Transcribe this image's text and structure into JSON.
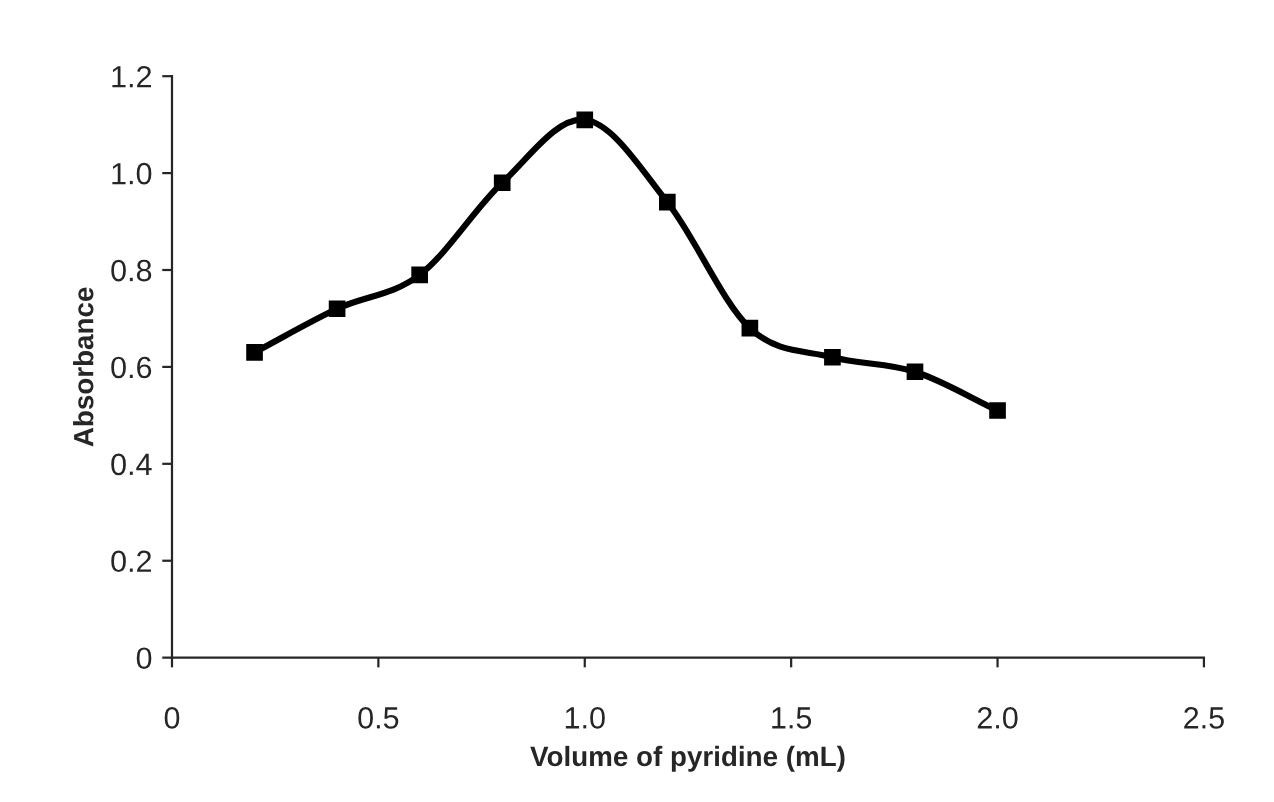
{
  "chart_data": {
    "type": "line",
    "xlabel": "Volume of pyridine (mL)",
    "ylabel": "Absorbance",
    "x": [
      0.2,
      0.4,
      0.6,
      0.8,
      1.0,
      1.2,
      1.4,
      1.6,
      1.8,
      2.0
    ],
    "series": [
      {
        "color": "#000000",
        "values": [
          0.63,
          0.72,
          0.79,
          0.98,
          1.11,
          0.94,
          0.68,
          0.62,
          0.59,
          0.51
        ]
      }
    ],
    "xlim": [
      0,
      2.5
    ],
    "xticks": [
      0,
      {
        "value": 0.5,
        "label": "0.5"
      },
      {
        "value": 1.0,
        "label": "1.0"
      },
      {
        "value": 1.5,
        "label": "1.5"
      },
      {
        "value": 2.0,
        "label": "2.0"
      },
      {
        "value": 2.5,
        "label": "2.5"
      }
    ],
    "ylim": [
      0,
      1.2
    ],
    "yticks": [
      0,
      {
        "value": 0.2,
        "label": "0.2"
      },
      {
        "value": 0.4,
        "label": "0.4"
      },
      {
        "value": 0.6,
        "label": "0.6"
      },
      {
        "value": 0.8,
        "label": "0.8"
      },
      {
        "value": 1.0,
        "label": "1.0"
      },
      {
        "value": 1.2,
        "label": "1.2"
      }
    ],
    "grid": false,
    "legend": false,
    "marker": "square",
    "line_style": "solid"
  }
}
